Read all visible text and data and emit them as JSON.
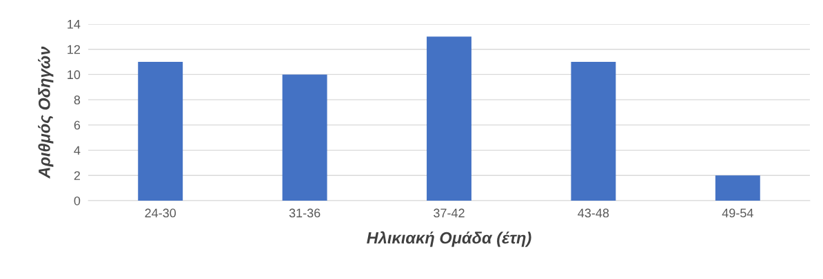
{
  "chart_data": {
    "type": "bar",
    "xlabel": "Ηλικιακή Ομάδα (έτη)",
    "ylabel": "Αριθμός Οδηγών",
    "categories": [
      "24-30",
      "31-36",
      "37-42",
      "43-48",
      "49-54"
    ],
    "values": [
      11,
      10,
      13,
      11,
      2
    ],
    "color": "#4472c4",
    "ylim": [
      0,
      14
    ],
    "yticks": [
      0,
      2,
      4,
      6,
      8,
      10,
      12,
      14
    ],
    "grid": "y",
    "legend": false
  }
}
